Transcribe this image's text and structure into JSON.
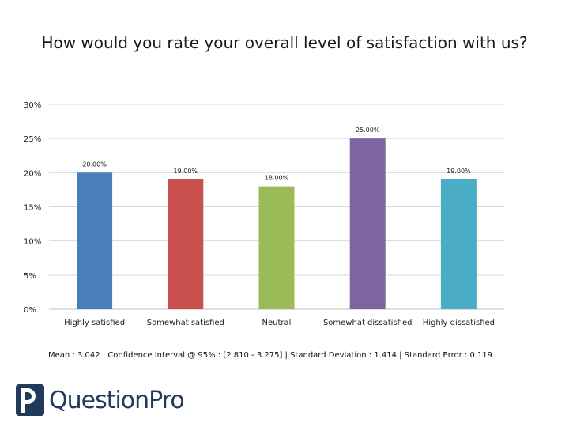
{
  "chart_data": {
    "type": "bar",
    "title": "How would you rate your overall level of satisfaction with us?",
    "categories": [
      "Highly satisfied",
      "Somewhat satisfied",
      "Neutral",
      "Somewhat dissatisfied",
      "Highly dissatisfied"
    ],
    "values": [
      20,
      19,
      18,
      25,
      19
    ],
    "data_labels": [
      "20.00%",
      "19.00%",
      "18.00%",
      "25.00%",
      "19.00%"
    ],
    "colors": [
      "#4a7ebb",
      "#c9504c",
      "#9bbb59",
      "#8064a2",
      "#4bacc6"
    ],
    "ylim": [
      0,
      30
    ],
    "yticks": [
      0,
      5,
      10,
      15,
      20,
      25,
      30
    ],
    "ytick_labels": [
      "0%",
      "5%",
      "10%",
      "15%",
      "20%",
      "25%",
      "30%"
    ],
    "grid": true,
    "xlabel": "",
    "ylabel": ""
  },
  "stats_line": "Mean : 3.042  |  Confidence Interval @ 95% : [2.810 - 3.275]  |  Standard Deviation : 1.414  |  Standard Error : 0.119",
  "brand": {
    "name": "QuestionPro",
    "logo_icon": "questionpro-logo-icon",
    "color": "#1f3a5a"
  }
}
